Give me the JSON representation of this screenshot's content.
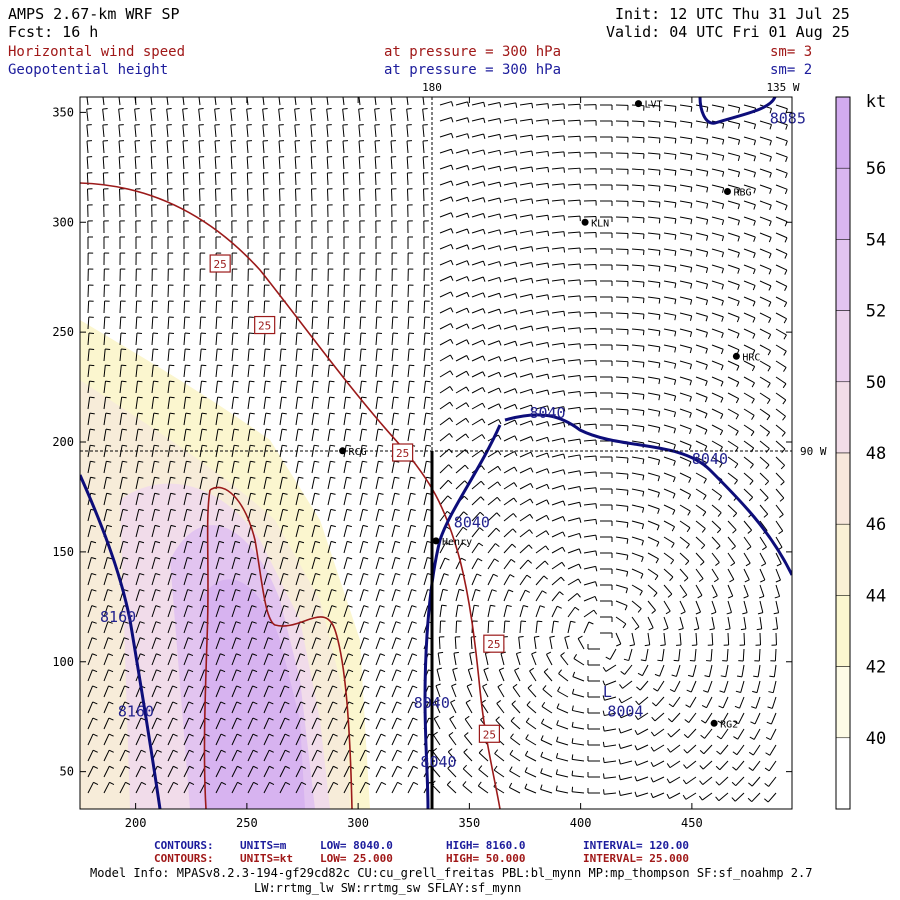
{
  "header": {
    "model": "AMPS 2.67-km WRF SP",
    "init": "Init: 12 UTC Thu 31 Jul 25",
    "fcst": "Fcst:   16 h",
    "valid": "Valid: 04 UTC Fri 01 Aug 25",
    "field1": "Horizontal wind speed",
    "field1_level": "at pressure =  300 hPa",
    "field1_smooth": "sm= 3",
    "field2": "Geopotential height",
    "field2_level": "at pressure =  300 hPa",
    "field2_smooth": "sm= 2"
  },
  "map": {
    "meridian_labels": {
      "top_180": "180",
      "top_135w": "135 W",
      "right_90w": "90 W"
    },
    "x_ticks": [
      200,
      250,
      300,
      350,
      400,
      450
    ],
    "y_ticks": [
      50,
      100,
      150,
      200,
      250,
      300,
      350
    ],
    "stations": [
      {
        "name": "LVT",
        "x": 426,
        "y": 354
      },
      {
        "name": "RBG",
        "x": 466,
        "y": 314
      },
      {
        "name": "KLN",
        "x": 402,
        "y": 300
      },
      {
        "name": "HRC",
        "x": 470,
        "y": 239
      },
      {
        "name": "RCG",
        "x": 293,
        "y": 196
      },
      {
        "name": "Henry",
        "x": 335,
        "y": 155
      },
      {
        "name": "RG2",
        "x": 460,
        "y": 72
      }
    ],
    "height_labels": [
      {
        "text": "8085",
        "x": 485,
        "y": 345
      },
      {
        "text": "8040",
        "x": 377,
        "y": 211
      },
      {
        "text": "8040",
        "x": 450,
        "y": 190
      },
      {
        "text": "8040",
        "x": 343,
        "y": 161
      },
      {
        "text": "8160",
        "x": 184,
        "y": 118
      },
      {
        "text": "8160",
        "x": 192,
        "y": 75
      },
      {
        "text": "8040",
        "x": 325,
        "y": 79
      },
      {
        "text": "8040",
        "x": 328,
        "y": 52
      },
      {
        "text": "L",
        "x": 410,
        "y": 84
      },
      {
        "text": "8004",
        "x": 412,
        "y": 75
      }
    ],
    "speed_labels": [
      {
        "text": "25",
        "x": 238,
        "y": 281
      },
      {
        "text": "25",
        "x": 258,
        "y": 253
      },
      {
        "text": "25",
        "x": 320,
        "y": 195
      },
      {
        "text": "25",
        "x": 361,
        "y": 108
      },
      {
        "text": "25",
        "x": 359,
        "y": 67
      }
    ]
  },
  "colorbar": {
    "unit": "kt",
    "labels": [
      40,
      42,
      44,
      46,
      48,
      50,
      52,
      54,
      56
    ]
  },
  "footer": {
    "c1": {
      "name": "CONTOURS:",
      "units": "UNITS=m",
      "low": "LOW=  8040.0",
      "high": "HIGH=  8160.0",
      "interval": "INTERVAL=    120.00"
    },
    "c2": {
      "name": "CONTOURS:",
      "units": "UNITS=kt",
      "low": "LOW=  25.000",
      "high": "HIGH=  50.000",
      "interval": "INTERVAL=    25.000"
    },
    "model_info": "Model Info: MPASv8.2.3-194-gf29cd82c CU:cu_grell_freitas PBL:bl_mynn MP:mp_thompson SF:sf_noahmp 2.7",
    "model_info2": "LW:rrtmg_lw SW:rrtmg_sw SFLAY:sf_mynn"
  }
}
